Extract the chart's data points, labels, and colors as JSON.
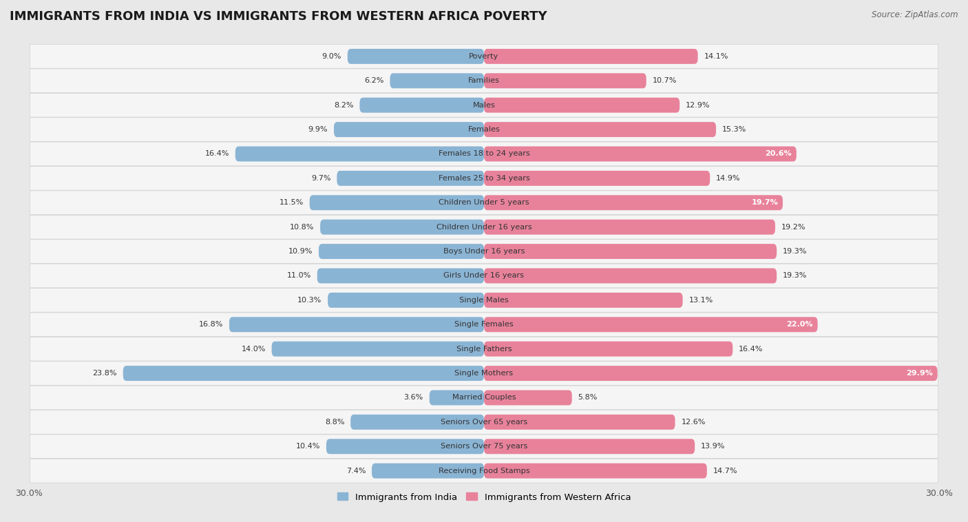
{
  "title": "IMMIGRANTS FROM INDIA VS IMMIGRANTS FROM WESTERN AFRICA POVERTY",
  "source": "Source: ZipAtlas.com",
  "categories": [
    "Poverty",
    "Families",
    "Males",
    "Females",
    "Females 18 to 24 years",
    "Females 25 to 34 years",
    "Children Under 5 years",
    "Children Under 16 years",
    "Boys Under 16 years",
    "Girls Under 16 years",
    "Single Males",
    "Single Females",
    "Single Fathers",
    "Single Mothers",
    "Married Couples",
    "Seniors Over 65 years",
    "Seniors Over 75 years",
    "Receiving Food Stamps"
  ],
  "india_values": [
    9.0,
    6.2,
    8.2,
    9.9,
    16.4,
    9.7,
    11.5,
    10.8,
    10.9,
    11.0,
    10.3,
    16.8,
    14.0,
    23.8,
    3.6,
    8.8,
    10.4,
    7.4
  ],
  "western_africa_values": [
    14.1,
    10.7,
    12.9,
    15.3,
    20.6,
    14.9,
    19.7,
    19.2,
    19.3,
    19.3,
    13.1,
    22.0,
    16.4,
    29.9,
    5.8,
    12.6,
    13.9,
    14.7
  ],
  "india_color": "#8ab4d4",
  "western_africa_color": "#e8829a",
  "background_color": "#e8e8e8",
  "row_bg_color": "#f5f5f5",
  "row_border_color": "#d0d0d0",
  "xlim": 30.0,
  "legend_india": "Immigrants from India",
  "legend_western_africa": "Immigrants from Western Africa",
  "title_fontsize": 13,
  "cat_fontsize": 8.2,
  "value_fontsize": 8.0,
  "axis_label_fontsize": 9
}
